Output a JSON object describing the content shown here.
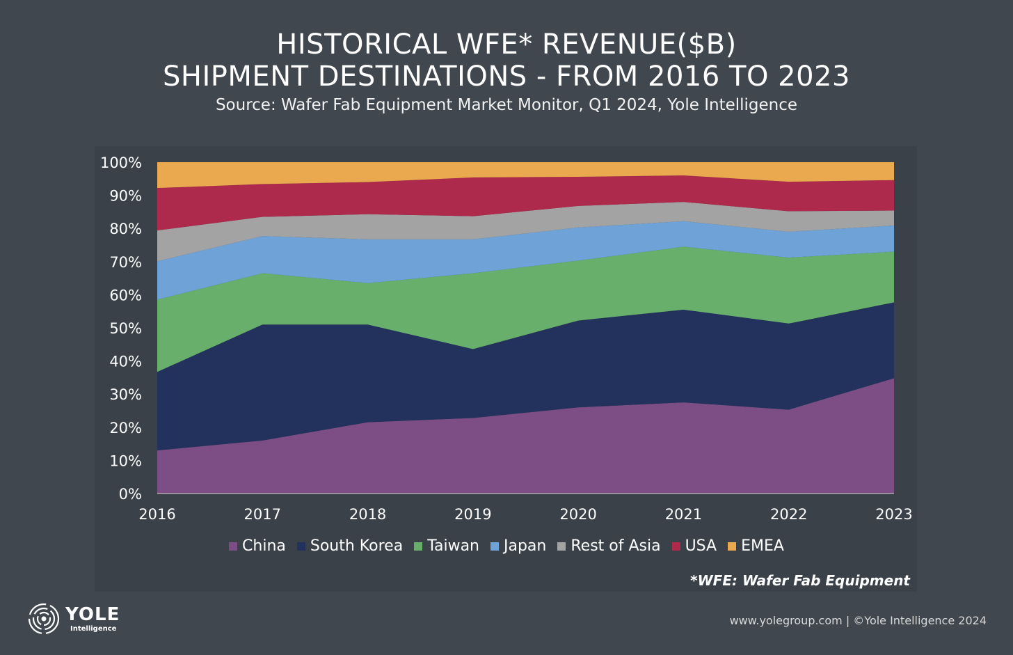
{
  "title_line1": "HISTORICAL WFE* REVENUE($B)",
  "title_line2": "SHIPMENT DESTINATIONS - FROM 2016 TO 2023",
  "subtitle": "Source: Wafer Fab Equipment Market Monitor, Q1 2024, Yole Intelligence",
  "footnote": "*WFE: Wafer Fab Equipment",
  "footer": "www.yolegroup.com | ©Yole Intelligence 2024",
  "logo": {
    "name": "YOLE",
    "sub": "Intelligence"
  },
  "chart_data": {
    "type": "area",
    "stacked": true,
    "categories": [
      "2016",
      "2017",
      "2018",
      "2019",
      "2020",
      "2021",
      "2022",
      "2023"
    ],
    "y_ticks": [
      "0%",
      "10%",
      "20%",
      "30%",
      "40%",
      "50%",
      "60%",
      "70%",
      "80%",
      "90%",
      "100%"
    ],
    "ylim": [
      0,
      100
    ],
    "grid": false,
    "legend": "bottom",
    "series": [
      {
        "name": "China",
        "color": "#7d4d86",
        "values": [
          13,
          16,
          21.5,
          22.8,
          26,
          27.5,
          25.3,
          34.8
        ]
      },
      {
        "name": "South Korea",
        "color": "#22325c",
        "values": [
          23.7,
          35,
          29.5,
          20.8,
          26.2,
          28,
          26,
          22.9
        ]
      },
      {
        "name": "Taiwan",
        "color": "#68af6c",
        "values": [
          21.8,
          15.5,
          12.5,
          22.9,
          18.1,
          19,
          19.9,
          15.3
        ]
      },
      {
        "name": "Japan",
        "color": "#6fa2d6",
        "values": [
          11.6,
          11.2,
          13.2,
          10.2,
          10,
          7.7,
          7.8,
          7.9
        ]
      },
      {
        "name": "Rest of Asia",
        "color": "#a3a3a3",
        "values": [
          9.3,
          5.8,
          7.6,
          7,
          6.5,
          5.8,
          6.2,
          4.5
        ]
      },
      {
        "name": "USA",
        "color": "#ae2a4c",
        "values": [
          12.8,
          9.9,
          9.7,
          11.7,
          8.8,
          8,
          8.9,
          9.2
        ]
      },
      {
        "name": "EMEA",
        "color": "#eaa94e",
        "values": [
          7.8,
          6.6,
          6,
          4.6,
          4.4,
          4,
          5.9,
          5.4
        ]
      }
    ]
  }
}
